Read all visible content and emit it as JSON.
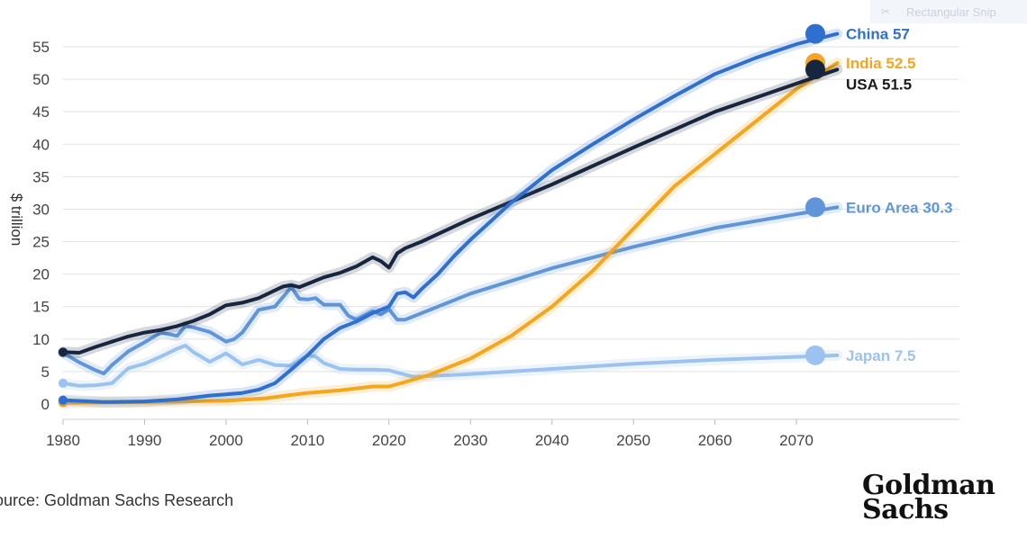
{
  "chart_data": {
    "type": "line",
    "title": "",
    "xlabel": "",
    "ylabel": "$ trillion",
    "xlim": [
      1980,
      2075
    ],
    "ylim": [
      0,
      55
    ],
    "xticks": [
      1980,
      1990,
      2000,
      2010,
      2020,
      2030,
      2040,
      2050,
      2060,
      2070
    ],
    "yticks": [
      0,
      5,
      10,
      15,
      20,
      25,
      30,
      35,
      40,
      45,
      50,
      55
    ],
    "grid": true,
    "series": [
      {
        "name": "Japan",
        "end_label": "Japan 7.5",
        "color": "#9cc3f0",
        "x": [
          1980,
          1982,
          1984,
          1986,
          1988,
          1990,
          1992,
          1994,
          1995,
          1996,
          1998,
          2000,
          2002,
          2004,
          2006,
          2008,
          2010,
          2011,
          2012,
          2014,
          2016,
          2018,
          2020,
          2022,
          2023,
          2030,
          2040,
          2050,
          2060,
          2075
        ],
        "y": [
          3.2,
          2.8,
          2.9,
          3.2,
          5.5,
          6.2,
          7.3,
          8.5,
          9.0,
          8.0,
          6.5,
          7.8,
          6.1,
          6.8,
          6.0,
          5.9,
          7.5,
          7.3,
          6.3,
          5.4,
          5.3,
          5.3,
          5.2,
          4.5,
          4.2,
          4.6,
          5.4,
          6.2,
          6.8,
          7.5
        ]
      },
      {
        "name": "Euro Area",
        "end_label": "Euro Area 30.3",
        "color": "#6096d9",
        "x": [
          1980,
          1982,
          1984,
          1985,
          1986,
          1988,
          1990,
          1992,
          1994,
          1995,
          1996,
          1998,
          2000,
          2001,
          2002,
          2004,
          2006,
          2008,
          2009,
          2010,
          2011,
          2012,
          2014,
          2015,
          2016,
          2018,
          2019,
          2020,
          2021,
          2022,
          2023,
          2030,
          2040,
          2050,
          2060,
          2075
        ],
        "y": [
          7.9,
          6.4,
          5.2,
          4.7,
          6.0,
          8.1,
          9.5,
          11.0,
          10.5,
          12.0,
          11.8,
          11.1,
          9.6,
          10.0,
          11.0,
          14.5,
          15.0,
          18.0,
          16.2,
          16.1,
          16.3,
          15.3,
          15.3,
          13.6,
          13.0,
          14.3,
          13.8,
          14.6,
          13.0,
          13.0,
          13.5,
          17.0,
          20.9,
          24.2,
          27.1,
          30.3
        ]
      },
      {
        "name": "India",
        "end_label": "India 52.5",
        "color": "#f5a61c",
        "x": [
          1980,
          1990,
          2000,
          2005,
          2008,
          2010,
          2014,
          2018,
          2020,
          2022,
          2025,
          2030,
          2035,
          2040,
          2045,
          2050,
          2055,
          2060,
          2065,
          2070,
          2075
        ],
        "y": [
          0.2,
          0.3,
          0.5,
          0.9,
          1.4,
          1.7,
          2.1,
          2.7,
          2.7,
          3.4,
          4.5,
          7.0,
          10.5,
          15.0,
          20.5,
          27.0,
          33.5,
          38.5,
          43.5,
          48.5,
          52.5
        ]
      },
      {
        "name": "USA",
        "end_label": "USA 51.5",
        "color": "#18253f",
        "x": [
          1980,
          1982,
          1984,
          1986,
          1988,
          1990,
          1992,
          1994,
          1996,
          1998,
          2000,
          2002,
          2004,
          2006,
          2007,
          2008,
          2009,
          2010,
          2012,
          2014,
          2016,
          2018,
          2019,
          2020,
          2021,
          2022,
          2024,
          2030,
          2040,
          2050,
          2060,
          2075
        ],
        "y": [
          8.0,
          7.9,
          8.8,
          9.6,
          10.4,
          11.0,
          11.4,
          12.0,
          12.8,
          13.8,
          15.2,
          15.6,
          16.3,
          17.5,
          18.1,
          18.3,
          18.0,
          18.5,
          19.5,
          20.2,
          21.2,
          22.6,
          22.0,
          21.0,
          23.2,
          24.0,
          25.0,
          28.5,
          33.8,
          39.5,
          45.0,
          51.5
        ]
      },
      {
        "name": "China",
        "end_label": "China 57",
        "color": "#2e6fcf",
        "x": [
          1980,
          1985,
          1990,
          1994,
          1998,
          2000,
          2002,
          2004,
          2006,
          2008,
          2010,
          2012,
          2014,
          2016,
          2018,
          2020,
          2021,
          2022,
          2023,
          2024,
          2026,
          2028,
          2030,
          2035,
          2040,
          2045,
          2050,
          2055,
          2060,
          2065,
          2070,
          2075
        ],
        "y": [
          0.6,
          0.3,
          0.4,
          0.7,
          1.3,
          1.5,
          1.7,
          2.2,
          3.2,
          5.3,
          7.5,
          10.0,
          11.7,
          12.7,
          14.0,
          15.0,
          17.0,
          17.2,
          16.4,
          17.7,
          20.0,
          22.8,
          25.3,
          31.0,
          36.0,
          40.0,
          43.8,
          47.4,
          50.8,
          53.3,
          55.4,
          57.0
        ]
      }
    ],
    "source": "ource: Goldman Sachs Research"
  },
  "branding": {
    "logo_line1": "Goldman",
    "logo_line2": "Sachs"
  },
  "overlay": {
    "snip_label": "Rectangular Snip",
    "snip_icon": "scissors-icon"
  }
}
